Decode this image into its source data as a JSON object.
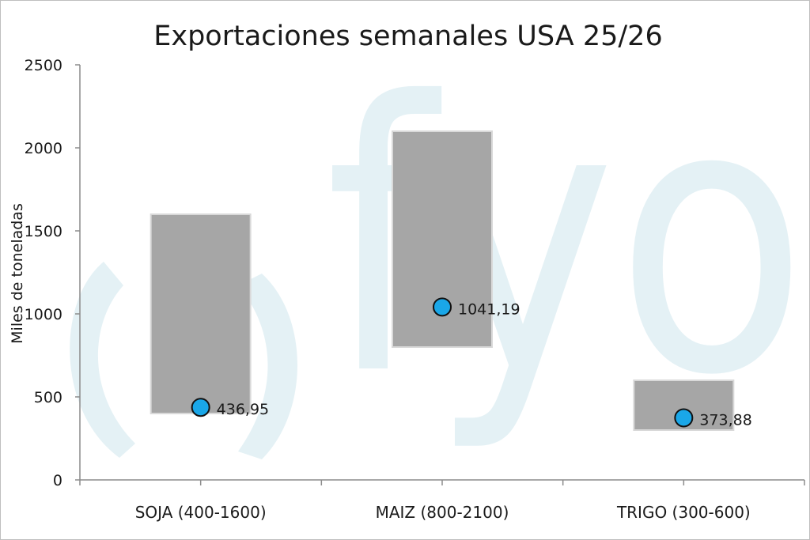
{
  "chart_data": {
    "type": "range-bar",
    "title": "Exportaciones semanales USA 25/26",
    "ylabel": "Miles de toneladas",
    "ylim": [
      0,
      2500
    ],
    "yticks": [
      0,
      500,
      1000,
      1500,
      2000,
      2500
    ],
    "grid": false,
    "categories": [
      "SOJA (400-1600)",
      "MAIZ (800-2100)",
      "TRIGO (300-600)"
    ],
    "ranges": [
      [
        400,
        1600
      ],
      [
        800,
        2100
      ],
      [
        300,
        600
      ]
    ],
    "values": [
      436.95,
      1041.19,
      373.88
    ],
    "value_labels": [
      "436,95",
      "1041,19",
      "373,88"
    ],
    "watermark": "fyo",
    "colors": {
      "range": "#a6a6a6",
      "marker": "#1aa7e8",
      "watermark": "#e4f1f5",
      "axis": "#8c8c8c"
    }
  }
}
